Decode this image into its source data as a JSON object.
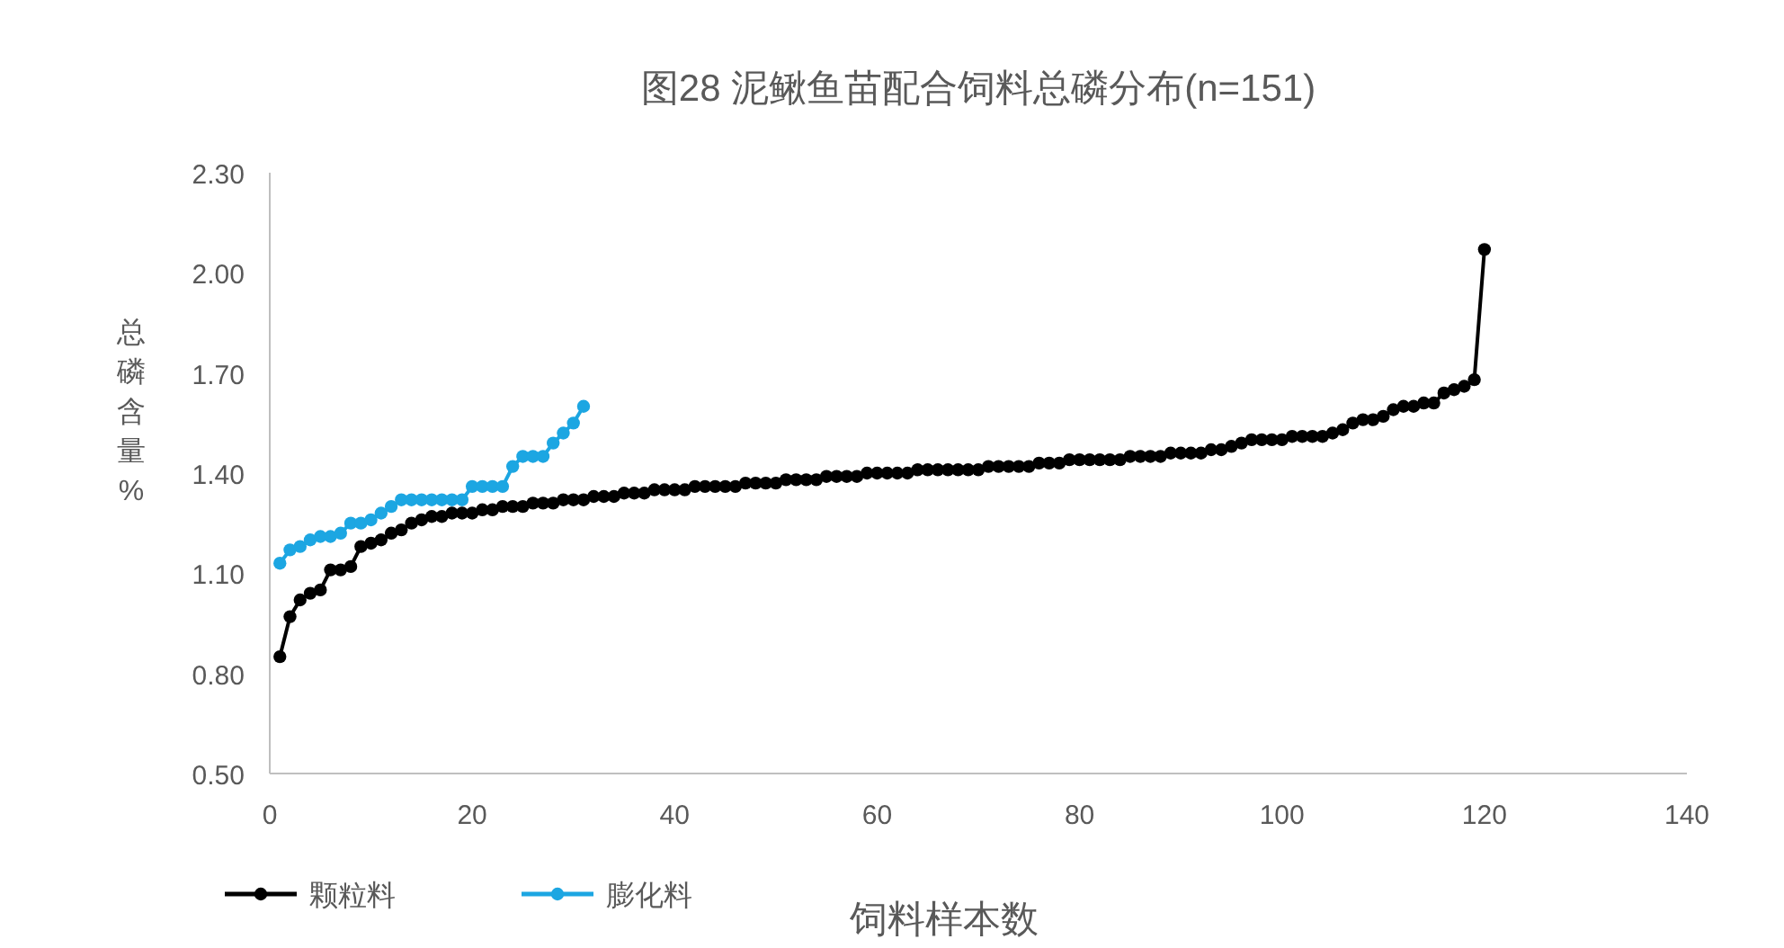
{
  "chart_data": {
    "type": "line",
    "title": "图28 泥鳅鱼苗配合饲料总磷分布(n=151)",
    "xlabel": "饲料样本数",
    "ylabel": "总磷含量%",
    "marker": "circle",
    "line_style": "solid",
    "grid": false,
    "legend": "bottom left",
    "xlim": [
      0,
      140
    ],
    "xticks": [
      0,
      20,
      40,
      60,
      80,
      100,
      120,
      140
    ],
    "ylim": [
      0.5,
      2.3
    ],
    "yticks": [
      {
        "value": 0.5,
        "label": "0.50"
      },
      {
        "value": 0.8,
        "label": "0.80"
      },
      {
        "value": 1.1,
        "label": "1.10"
      },
      {
        "value": 1.4,
        "label": "1.40"
      },
      {
        "value": 1.7,
        "label": "1.70"
      },
      {
        "value": 2.0,
        "label": "2.00"
      },
      {
        "value": 2.3,
        "label": "2.30"
      }
    ],
    "series": [
      {
        "name": "颗粒料",
        "color": "#000000",
        "x": [
          1,
          2,
          3,
          4,
          5,
          6,
          7,
          8,
          9,
          10,
          11,
          12,
          13,
          14,
          15,
          16,
          17,
          18,
          19,
          20,
          21,
          22,
          23,
          24,
          25,
          26,
          27,
          28,
          29,
          30,
          31,
          32,
          33,
          34,
          35,
          36,
          37,
          38,
          39,
          40,
          41,
          42,
          43,
          44,
          45,
          46,
          47,
          48,
          49,
          50,
          51,
          52,
          53,
          54,
          55,
          56,
          57,
          58,
          59,
          60,
          61,
          62,
          63,
          64,
          65,
          66,
          67,
          68,
          69,
          70,
          71,
          72,
          73,
          74,
          75,
          76,
          77,
          78,
          79,
          80,
          81,
          82,
          83,
          84,
          85,
          86,
          87,
          88,
          89,
          90,
          91,
          92,
          93,
          94,
          95,
          96,
          97,
          98,
          99,
          100,
          101,
          102,
          103,
          104,
          105,
          106,
          107,
          108,
          109,
          110,
          111,
          112,
          113,
          114,
          115,
          116,
          117,
          118,
          119,
          120
        ],
        "values": [
          0.85,
          0.97,
          1.02,
          1.04,
          1.05,
          1.11,
          1.11,
          1.12,
          1.18,
          1.19,
          1.2,
          1.22,
          1.23,
          1.25,
          1.26,
          1.27,
          1.27,
          1.28,
          1.28,
          1.28,
          1.29,
          1.29,
          1.3,
          1.3,
          1.3,
          1.31,
          1.31,
          1.31,
          1.32,
          1.32,
          1.32,
          1.33,
          1.33,
          1.33,
          1.34,
          1.34,
          1.34,
          1.35,
          1.35,
          1.35,
          1.35,
          1.36,
          1.36,
          1.36,
          1.36,
          1.36,
          1.37,
          1.37,
          1.37,
          1.37,
          1.38,
          1.38,
          1.38,
          1.38,
          1.39,
          1.39,
          1.39,
          1.39,
          1.4,
          1.4,
          1.4,
          1.4,
          1.4,
          1.41,
          1.41,
          1.41,
          1.41,
          1.41,
          1.41,
          1.41,
          1.42,
          1.42,
          1.42,
          1.42,
          1.42,
          1.43,
          1.43,
          1.43,
          1.44,
          1.44,
          1.44,
          1.44,
          1.44,
          1.44,
          1.45,
          1.45,
          1.45,
          1.45,
          1.46,
          1.46,
          1.46,
          1.46,
          1.47,
          1.47,
          1.48,
          1.49,
          1.5,
          1.5,
          1.5,
          1.5,
          1.51,
          1.51,
          1.51,
          1.51,
          1.52,
          1.53,
          1.55,
          1.56,
          1.56,
          1.57,
          1.59,
          1.6,
          1.6,
          1.61,
          1.61,
          1.64,
          1.65,
          1.66,
          1.68,
          2.07
        ]
      },
      {
        "name": "膨化料",
        "color": "#1ca6e2",
        "x": [
          1,
          2,
          3,
          4,
          5,
          6,
          7,
          8,
          9,
          10,
          11,
          12,
          13,
          14,
          15,
          16,
          17,
          18,
          19,
          20,
          21,
          22,
          23,
          24,
          25,
          26,
          27,
          28,
          29,
          30,
          31
        ],
        "values": [
          1.13,
          1.17,
          1.18,
          1.2,
          1.21,
          1.21,
          1.22,
          1.25,
          1.25,
          1.26,
          1.28,
          1.3,
          1.32,
          1.32,
          1.32,
          1.32,
          1.32,
          1.32,
          1.32,
          1.36,
          1.36,
          1.36,
          1.36,
          1.42,
          1.45,
          1.45,
          1.45,
          1.49,
          1.52,
          1.55,
          1.6
        ]
      }
    ]
  }
}
